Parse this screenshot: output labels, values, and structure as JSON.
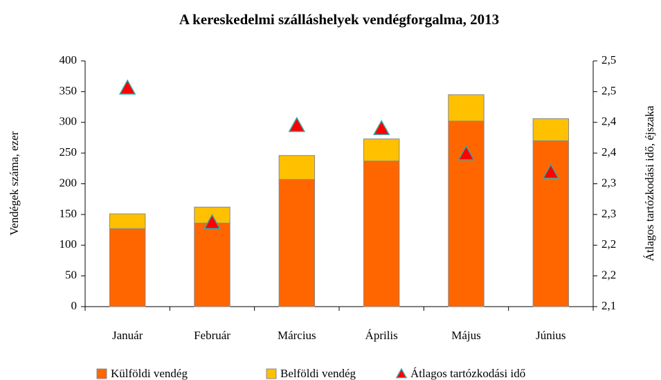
{
  "chart_data": {
    "type": "bar",
    "stacked": true,
    "title": "A kereskedelmi szálláshelyek vendégforgalma, 2013",
    "y_label": "Vendégek száma, ezer",
    "y2_label": "Átlagos tartózkodási idő, éjszaka",
    "categories": [
      "Január",
      "Február",
      "Március",
      "Április",
      "Május",
      "Június"
    ],
    "series": [
      {
        "name": "Külföldi vendég",
        "color": "#FF6600",
        "values": [
          127,
          136,
          207,
          237,
          302,
          270
        ]
      },
      {
        "name": "Belföldi vendég",
        "color": "#FFC000",
        "values": [
          24,
          26,
          39,
          36,
          43,
          36
        ]
      },
      {
        "name": "Átlagos tartózkodási idő",
        "color": "#FF0000",
        "type": "scatter",
        "axis": "y2",
        "values": [
          2.456,
          2.237,
          2.395,
          2.39,
          2.349,
          2.319
        ]
      }
    ],
    "ylim": [
      0,
      400
    ],
    "yticks": [
      0,
      50,
      100,
      150,
      200,
      250,
      300,
      350,
      400
    ],
    "y2lim": [
      2.1,
      2.5
    ],
    "y2ticks": [
      {
        "value": 2.1,
        "label": "2,1"
      },
      {
        "value": 2.15,
        "label": "2,2"
      },
      {
        "value": 2.2,
        "label": "2,2"
      },
      {
        "value": 2.25,
        "label": "2,3"
      },
      {
        "value": 2.3,
        "label": "2,3"
      },
      {
        "value": 2.35,
        "label": "2,4"
      },
      {
        "value": 2.4,
        "label": "2,4"
      },
      {
        "value": 2.45,
        "label": "2,5"
      },
      {
        "value": 2.5,
        "label": "2,5"
      }
    ],
    "grid": false,
    "legend": "bottom"
  }
}
